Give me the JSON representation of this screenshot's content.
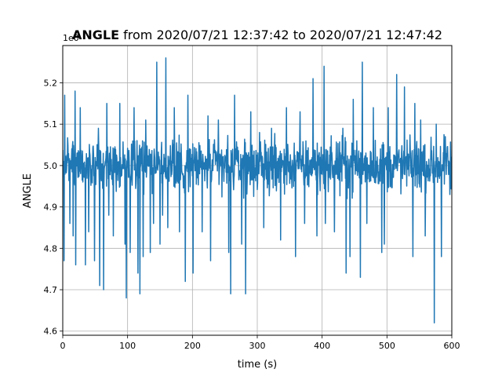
{
  "chart_data": {
    "type": "line",
    "title_bold": "ANGLE",
    "title_rest": " from 2020/07/21 12:37:42 to 2020/07/21 12:47:42",
    "xlabel": "time (s)",
    "ylabel": "ANGLE",
    "offset_label": "1e0",
    "xlim": [
      0,
      600
    ],
    "ylim": [
      4.59,
      5.29
    ],
    "xticks": [
      0,
      100,
      200,
      300,
      400,
      500,
      600
    ],
    "yticks": [
      4.6,
      4.7,
      4.8,
      4.9,
      5.0,
      5.1,
      5.2
    ],
    "xtick_labels": [
      "0",
      "100",
      "200",
      "300",
      "400",
      "500",
      "600"
    ],
    "ytick_labels": [
      "4.6",
      "4.7",
      "4.8",
      "4.9",
      "5.0",
      "5.1",
      "5.2"
    ],
    "grid": true,
    "line_color": "#1f77b4",
    "series": [
      {
        "noise_band": [
          4.93,
          5.07
        ],
        "spikes": [
          {
            "x": 2,
            "y": 4.77
          },
          {
            "x": 3,
            "y": 5.17
          },
          {
            "x": 11,
            "y": 4.86
          },
          {
            "x": 16,
            "y": 4.83
          },
          {
            "x": 19,
            "y": 5.18
          },
          {
            "x": 20,
            "y": 4.76
          },
          {
            "x": 27,
            "y": 5.14
          },
          {
            "x": 35,
            "y": 4.76
          },
          {
            "x": 40,
            "y": 4.84
          },
          {
            "x": 49,
            "y": 4.77
          },
          {
            "x": 55,
            "y": 5.09
          },
          {
            "x": 57,
            "y": 4.71
          },
          {
            "x": 63,
            "y": 4.7
          },
          {
            "x": 68,
            "y": 5.15
          },
          {
            "x": 71,
            "y": 4.88
          },
          {
            "x": 78,
            "y": 4.83
          },
          {
            "x": 88,
            "y": 5.15
          },
          {
            "x": 96,
            "y": 4.81
          },
          {
            "x": 98,
            "y": 4.68
          },
          {
            "x": 104,
            "y": 4.79
          },
          {
            "x": 110,
            "y": 5.14
          },
          {
            "x": 116,
            "y": 4.74
          },
          {
            "x": 119,
            "y": 4.69
          },
          {
            "x": 124,
            "y": 4.78
          },
          {
            "x": 128,
            "y": 5.11
          },
          {
            "x": 135,
            "y": 4.79
          },
          {
            "x": 140,
            "y": 4.86
          },
          {
            "x": 145,
            "y": 5.25
          },
          {
            "x": 150,
            "y": 4.81
          },
          {
            "x": 154,
            "y": 4.88
          },
          {
            "x": 159,
            "y": 5.26
          },
          {
            "x": 162,
            "y": 4.85
          },
          {
            "x": 172,
            "y": 5.14
          },
          {
            "x": 180,
            "y": 4.84
          },
          {
            "x": 189,
            "y": 4.72
          },
          {
            "x": 193,
            "y": 5.17
          },
          {
            "x": 201,
            "y": 4.74
          },
          {
            "x": 215,
            "y": 4.84
          },
          {
            "x": 224,
            "y": 5.12
          },
          {
            "x": 228,
            "y": 4.77
          },
          {
            "x": 240,
            "y": 5.11
          },
          {
            "x": 256,
            "y": 4.79
          },
          {
            "x": 259,
            "y": 4.69
          },
          {
            "x": 265,
            "y": 5.17
          },
          {
            "x": 276,
            "y": 4.81
          },
          {
            "x": 282,
            "y": 4.69
          },
          {
            "x": 290,
            "y": 5.13
          },
          {
            "x": 310,
            "y": 4.85
          },
          {
            "x": 322,
            "y": 5.09
          },
          {
            "x": 336,
            "y": 4.82
          },
          {
            "x": 345,
            "y": 5.14
          },
          {
            "x": 359,
            "y": 4.78
          },
          {
            "x": 366,
            "y": 5.13
          },
          {
            "x": 373,
            "y": 4.86
          },
          {
            "x": 386,
            "y": 5.21
          },
          {
            "x": 392,
            "y": 4.83
          },
          {
            "x": 403,
            "y": 5.24
          },
          {
            "x": 405,
            "y": 4.86
          },
          {
            "x": 419,
            "y": 4.84
          },
          {
            "x": 432,
            "y": 5.09
          },
          {
            "x": 437,
            "y": 4.74
          },
          {
            "x": 443,
            "y": 4.78
          },
          {
            "x": 448,
            "y": 5.16
          },
          {
            "x": 459,
            "y": 4.73
          },
          {
            "x": 462,
            "y": 5.25
          },
          {
            "x": 469,
            "y": 4.86
          },
          {
            "x": 479,
            "y": 5.14
          },
          {
            "x": 492,
            "y": 4.79
          },
          {
            "x": 496,
            "y": 4.81
          },
          {
            "x": 502,
            "y": 5.14
          },
          {
            "x": 515,
            "y": 5.22
          },
          {
            "x": 527,
            "y": 5.19
          },
          {
            "x": 540,
            "y": 4.78
          },
          {
            "x": 543,
            "y": 5.15
          },
          {
            "x": 552,
            "y": 5.11
          },
          {
            "x": 559,
            "y": 4.83
          },
          {
            "x": 573,
            "y": 4.62
          },
          {
            "x": 576,
            "y": 5.1
          },
          {
            "x": 584,
            "y": 4.78
          },
          {
            "x": 590,
            "y": 5.07
          },
          {
            "x": 597,
            "y": 4.93
          }
        ]
      }
    ]
  }
}
